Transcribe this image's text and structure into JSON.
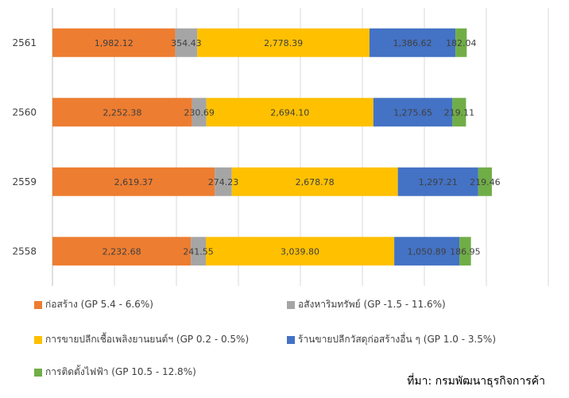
{
  "chart_data": {
    "type": "bar",
    "orientation": "horizontal",
    "stacked": true,
    "categories": [
      "2561",
      "2560",
      "2559",
      "2558"
    ],
    "series": [
      {
        "name": "ก่อสร้าง (GP 5.4 - 6.6%)",
        "color": "#ED7D31",
        "values": [
          1982.12,
          2252.38,
          2619.37,
          2232.68
        ],
        "labels": [
          "1,982.12",
          "2,252.38",
          "2,619.37",
          "2,232.68"
        ]
      },
      {
        "name": "อสังหาริมทรัพย์ (GP -1.5 - 11.6%)",
        "color": "#A5A5A5",
        "values": [
          354.43,
          230.69,
          274.23,
          241.55
        ],
        "labels": [
          "354.43",
          "230.69",
          "274.23",
          "241.55"
        ]
      },
      {
        "name": "การขายปลีกเชื้อเพลิงยานยนต์ฯ (GP 0.2 - 0.5%)",
        "color": "#FFC000",
        "values": [
          2778.39,
          2694.1,
          2678.78,
          3039.8
        ],
        "labels": [
          "2,778.39",
          "2,694.10",
          "2,678.78",
          "3,039.80"
        ]
      },
      {
        "name": "ร้านขายปลีกวัสดุก่อสร้างอื่น ๆ (GP 1.0 - 3.5%)",
        "color": "#4472C4",
        "values": [
          1386.62,
          1275.65,
          1297.21,
          1050.89
        ],
        "labels": [
          "1,386.62",
          "1,275.65",
          "1,297.21",
          "1,050.89"
        ]
      },
      {
        "name": "การติดตั้งไฟฟ้า (GP 10.5 - 12.8%)",
        "color": "#70AD47",
        "values": [
          182.04,
          219.11,
          219.46,
          186.95
        ],
        "labels": [
          "182.04",
          "219.11",
          "219.46",
          "186.95"
        ]
      }
    ],
    "xlim": [
      0,
      8000
    ],
    "grid": true,
    "legend_position": "bottom"
  },
  "source_note": "ที่มา: กรมพัฒนาธุรกิจการค้า"
}
